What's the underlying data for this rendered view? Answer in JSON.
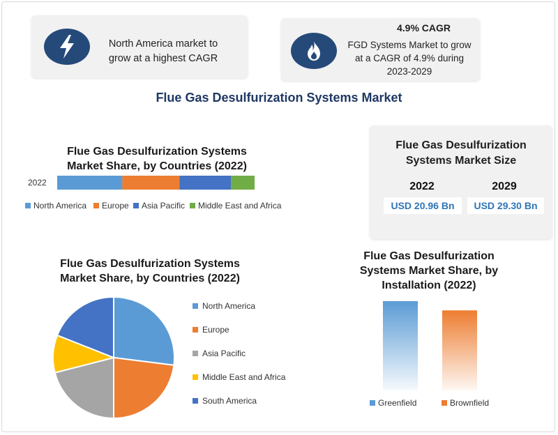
{
  "top_cards": {
    "left": {
      "icon": "lightning-bolt-icon",
      "line1": "North America market to",
      "line2": "grow at a highest CAGR"
    },
    "right": {
      "icon": "flame-icon",
      "heading": "4.9% CAGR",
      "line1": "FGD Systems Market to grow",
      "line2": "at a CAGR of 4.9% during",
      "line3": "2023-2029"
    }
  },
  "main_title": "Flue Gas Desulfurization Systems Market",
  "market_size": {
    "title_line1": "Flue Gas Desulfurization",
    "title_line2": "Systems Market Size",
    "year1": "2022",
    "year2": "2029",
    "value1": "USD 20.96 Bn",
    "value2": "USD 29.30 Bn"
  },
  "colors": {
    "north_america": "#5b9bd5",
    "europe": "#ed7d31",
    "asia_pacific": "#4472c4",
    "asia_pacific_pie": "#a5a5a5",
    "middle_east_africa_bar": "#70ad47",
    "middle_east_africa_pie": "#ffc000",
    "south_america": "#4472c4",
    "greenfield": "#5b9bd5",
    "brownfield": "#ed7d31",
    "title_blue": "#1f3864"
  },
  "chart_data": [
    {
      "type": "bar",
      "orientation": "horizontal-stacked",
      "title": "Flue Gas Desulfurization Systems Market Share, by Countries (2022)",
      "categories": [
        "2022"
      ],
      "series": [
        {
          "name": "North America",
          "values": [
            33
          ]
        },
        {
          "name": "Europe",
          "values": [
            29
          ]
        },
        {
          "name": "Asia Pacific",
          "values": [
            26
          ]
        },
        {
          "name": "Middle East and Africa",
          "values": [
            12
          ]
        }
      ],
      "legend": "bottom"
    },
    {
      "type": "pie",
      "title": "Flue Gas Desulfurization Systems Market Share, by Countries (2022)",
      "labels": [
        "North America",
        "Europe",
        "Asia Pacific",
        "Middle East and Africa",
        "South America"
      ],
      "values": [
        27,
        23,
        21,
        10,
        19
      ],
      "legend": "right"
    },
    {
      "type": "bar",
      "title": "Flue Gas Desulfurization Systems Market Share, by Installation (2022)",
      "categories": [
        "Greenfield",
        "Brownfield"
      ],
      "values": [
        58,
        52
      ],
      "ylim": [
        0,
        60
      ],
      "legend": "bottom"
    }
  ]
}
